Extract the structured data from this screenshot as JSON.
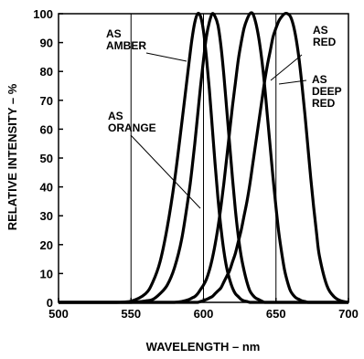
{
  "chart_data": {
    "type": "line",
    "xlabel": "WAVELENGTH – nm",
    "ylabel": "RELATIVE INTENSITY – %",
    "xlim": [
      500,
      700
    ],
    "ylim": [
      0,
      100
    ],
    "x_ticks": [
      "500",
      "550",
      "600",
      "650",
      "700"
    ],
    "y_ticks": [
      "0",
      "10",
      "20",
      "30",
      "40",
      "50",
      "60",
      "70",
      "80",
      "90",
      "100"
    ],
    "grid": "vertical lines at 550, 600, 650",
    "line_color": "#000000",
    "x": [
      500,
      520,
      540,
      550,
      560,
      565,
      570,
      575,
      580,
      585,
      590,
      592,
      594,
      596,
      598,
      600,
      602,
      604,
      606,
      608,
      610,
      612,
      614,
      616,
      618,
      620,
      622,
      624,
      626,
      628,
      630,
      632,
      634,
      636,
      638,
      640,
      642,
      644,
      646,
      648,
      650,
      652,
      654,
      656,
      658,
      660,
      662,
      664,
      666,
      668,
      670,
      672,
      674,
      676,
      678,
      680,
      685,
      690,
      695,
      700
    ],
    "series": [
      {
        "label": "AS AMBER",
        "values": [
          0,
          0,
          0,
          0.4,
          3,
          7,
          14,
          26,
          42,
          62,
          83,
          91,
          97,
          100,
          99,
          94,
          85,
          74,
          61,
          48,
          36,
          26,
          18,
          12,
          8,
          5,
          3,
          2,
          1,
          0.5,
          0.3,
          0,
          0,
          0,
          0,
          0,
          0,
          0,
          0,
          0,
          0,
          0,
          0,
          0,
          0,
          0,
          0,
          0,
          0,
          0,
          0,
          0,
          0,
          0,
          0,
          0,
          0,
          0,
          0,
          0
        ]
      },
      {
        "label": "AS ORANGE",
        "values": [
          0,
          0,
          0,
          0,
          0.5,
          1,
          3,
          6,
          12,
          22,
          38,
          46,
          55,
          65,
          75,
          84,
          92,
          97,
          100,
          99,
          96,
          89,
          79,
          67,
          55,
          43,
          32,
          23,
          16,
          11,
          7,
          4,
          2.5,
          1.5,
          1,
          0.5,
          0,
          0,
          0,
          0,
          0,
          0,
          0,
          0,
          0,
          0,
          0,
          0,
          0,
          0,
          0,
          0,
          0,
          0,
          0,
          0,
          0,
          0,
          0,
          0
        ]
      },
      {
        "label": "AS RED",
        "values": [
          0,
          0,
          0,
          0,
          0,
          0,
          0,
          0,
          0,
          0.3,
          1,
          1.5,
          2,
          3,
          4.5,
          6,
          8,
          11,
          15,
          20,
          26,
          33,
          41,
          50,
          59,
          68,
          76,
          84,
          90,
          95,
          98,
          100,
          100,
          97,
          92,
          85,
          76,
          65,
          54,
          43,
          33,
          24,
          17,
          11,
          7,
          4,
          2.5,
          1.5,
          1,
          0.5,
          0.3,
          0,
          0,
          0,
          0,
          0,
          0,
          0,
          0,
          0
        ]
      },
      {
        "label": "AS DEEP RED",
        "values": [
          0,
          0,
          0,
          0,
          0,
          0,
          0,
          0,
          0,
          0,
          0,
          0,
          0,
          0,
          0.3,
          0.6,
          1,
          1.5,
          2,
          3,
          4,
          5,
          7,
          9,
          11,
          14,
          17,
          21,
          25,
          30,
          35,
          41,
          48,
          55,
          62,
          69,
          76,
          82,
          87,
          92,
          95,
          97.5,
          99,
          100,
          100,
          99,
          96,
          91,
          84,
          75,
          65,
          54,
          43,
          33,
          24,
          16,
          6,
          2,
          0.5,
          0
        ]
      }
    ],
    "annotations": [
      {
        "lines": [
          "AS",
          "AMBER"
        ],
        "series": "AS AMBER"
      },
      {
        "lines": [
          "AS",
          "ORANGE"
        ],
        "series": "AS ORANGE"
      },
      {
        "lines": [
          "AS",
          "RED"
        ],
        "series": "AS RED"
      },
      {
        "lines": [
          "AS",
          "DEEP",
          "RED"
        ],
        "series": "AS DEEP RED"
      }
    ]
  }
}
